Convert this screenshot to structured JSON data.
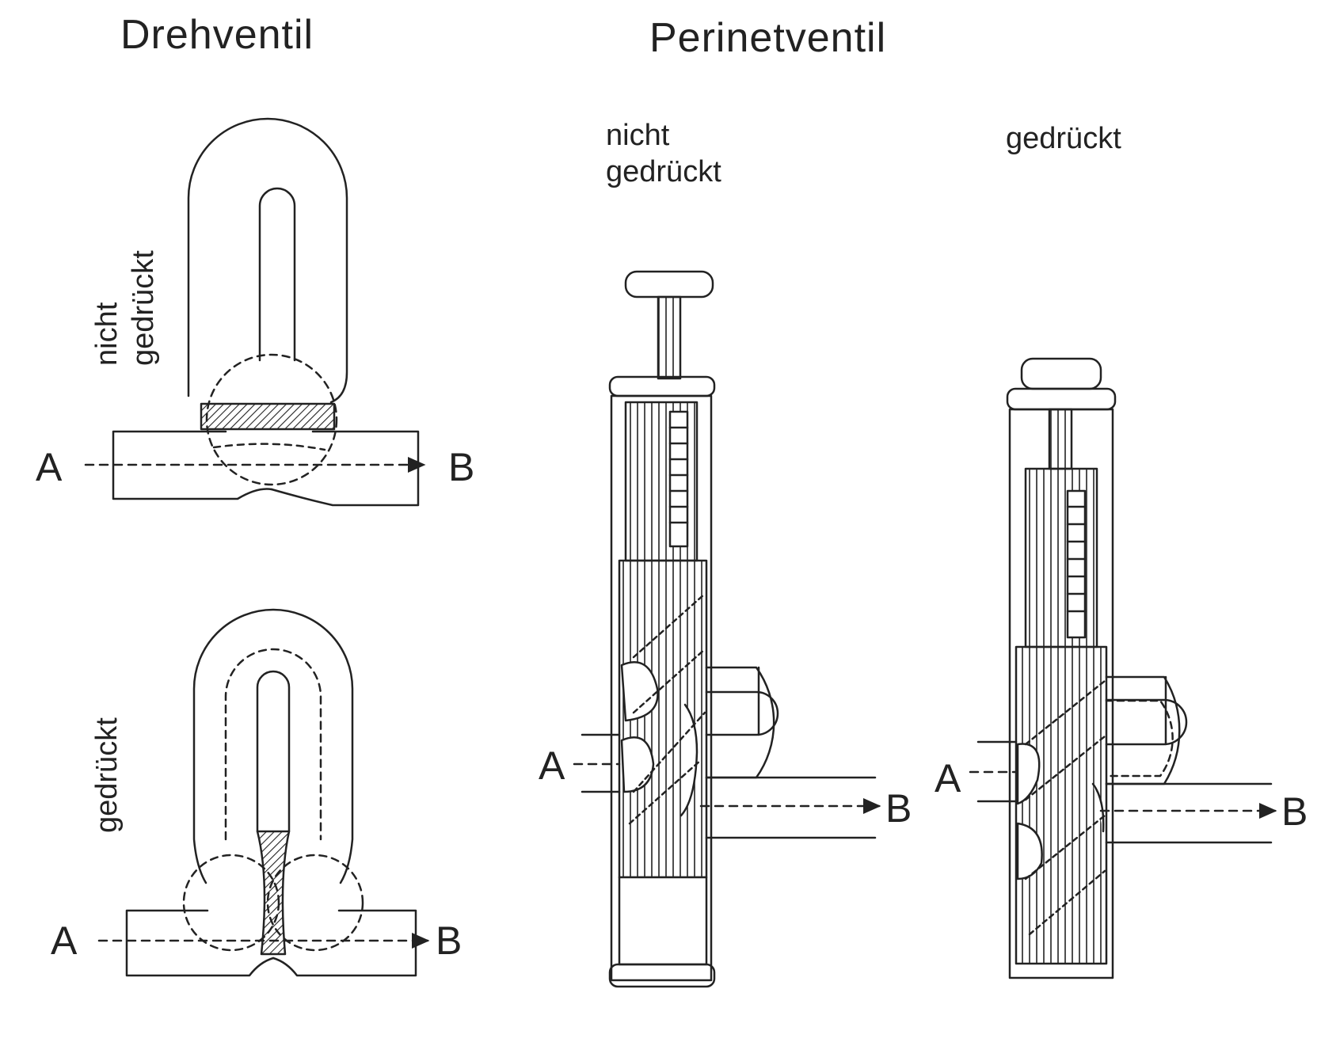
{
  "titles": {
    "rotary": "Drehventil",
    "piston": "Perinetventil"
  },
  "states": {
    "rotary_up": "nicht\ngedrückt",
    "rotary_down": "gedrückt",
    "piston_up": "nicht\ngedrückt",
    "piston_down": "gedrückt"
  },
  "ports": {
    "in": "A",
    "out": "B"
  },
  "colors": {
    "ink": "#222222",
    "paper": "#ffffff"
  }
}
